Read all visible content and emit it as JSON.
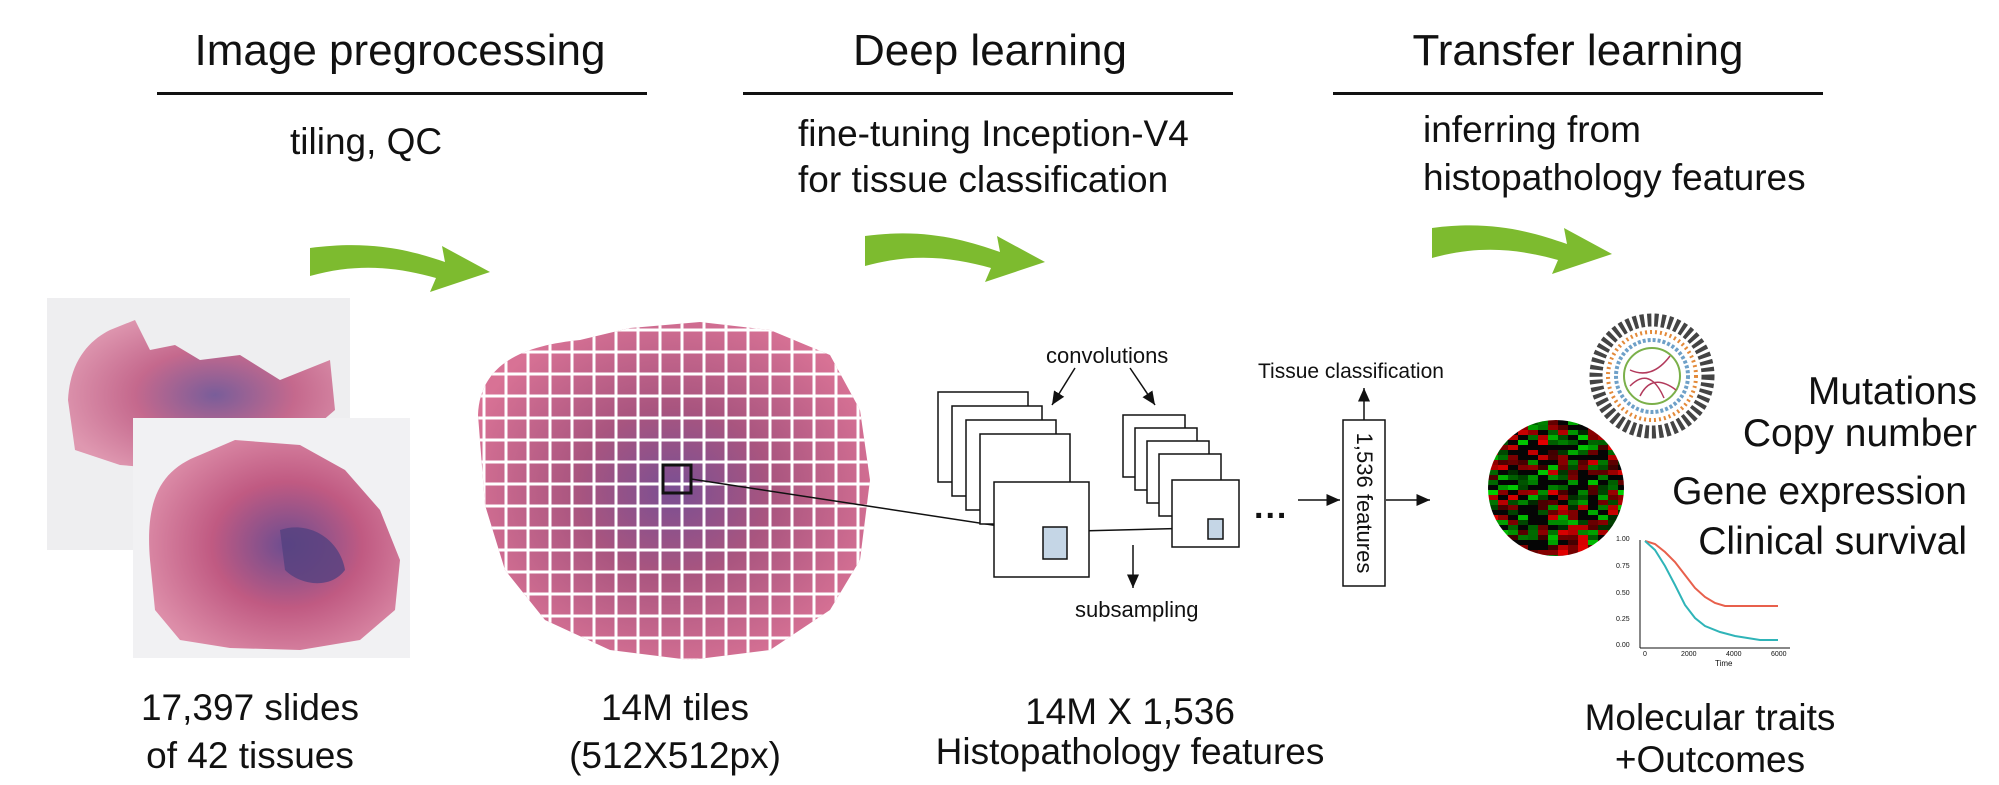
{
  "stages": [
    {
      "title": "Image pregrocessing",
      "subtitle": [
        "tiling, QC"
      ],
      "caption": [
        "17,397 slides",
        "of 42 tissues"
      ]
    },
    {
      "title": "Deep learning",
      "subtitle": [
        "fine-tuning Inception-V4",
        "for tissue classification"
      ],
      "caption": [
        "14M tiles",
        "(512X512px)"
      ]
    },
    {
      "title": "Transfer learning",
      "subtitle": [
        "inferring from",
        "histopathology features"
      ],
      "caption": [
        "14M X 1,536",
        "Histopathology features"
      ]
    }
  ],
  "network": {
    "convolutions": "convolutions",
    "subsampling": "subsampling",
    "ellipsis": "...",
    "features": "1,536 features",
    "classification": "Tissue classification"
  },
  "outputs": {
    "items": [
      "Mutations",
      "Copy number",
      "Gene expression",
      "Clinical survival"
    ],
    "caption": [
      "Molecular traits",
      "+Outcomes"
    ]
  },
  "survival_plot": {
    "y_ticks": [
      "1.00",
      "0.75",
      "0.50",
      "0.25",
      "0.00"
    ],
    "x_ticks": [
      "0",
      "2000",
      "4000",
      "6000"
    ],
    "x_label": "Time"
  },
  "colors": {
    "arrow_green": "#7dbb2f",
    "tissue_pink": "#c8587f",
    "tissue_purple": "#6a4d8f",
    "tile_highlight": "#c5d6e6",
    "km_red": "#e8604c",
    "km_teal": "#2fb4b8"
  }
}
